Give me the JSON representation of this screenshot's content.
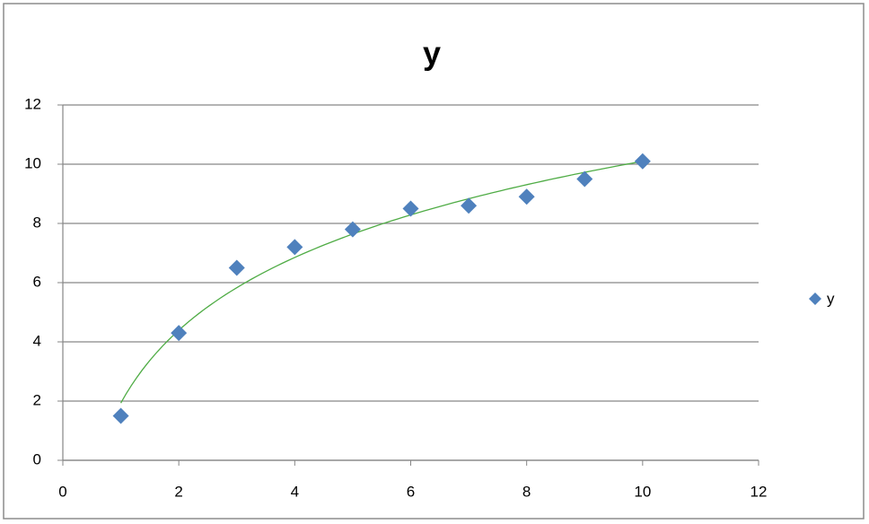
{
  "chart_data": {
    "type": "scatter",
    "title": "y",
    "series": [
      {
        "name": "y",
        "color": "#4f81bd",
        "x": [
          1,
          2,
          3,
          4,
          5,
          6,
          7,
          8,
          9,
          10
        ],
        "values": [
          1.5,
          4.3,
          6.5,
          7.2,
          7.8,
          8.5,
          8.6,
          8.9,
          9.5,
          10.1
        ]
      }
    ],
    "trendline": {
      "type": "logarithmic",
      "color": "#4fac45"
    },
    "xlim": [
      0,
      12
    ],
    "xticks": [
      0,
      2,
      4,
      6,
      8,
      10,
      12
    ],
    "ylim": [
      0,
      12
    ],
    "yticks": [
      0,
      2,
      4,
      6,
      8,
      10,
      12
    ],
    "grid": true,
    "legend": "right"
  }
}
